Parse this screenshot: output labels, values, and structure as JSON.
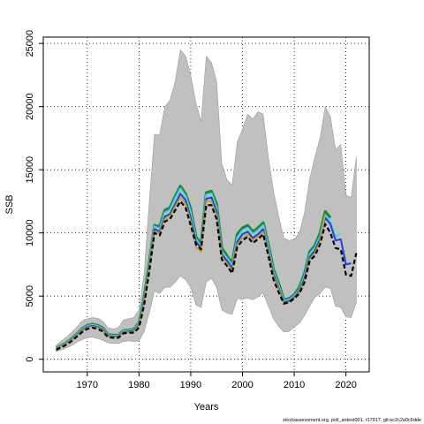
{
  "chart_data": {
    "type": "line",
    "title": "",
    "xlabel": "Years",
    "ylabel": "SSB",
    "xlim": [
      1961.5,
      2024.5
    ],
    "ylim": [
      -1000,
      25500
    ],
    "xticks": [
      1970,
      1980,
      1990,
      2000,
      2010,
      2020
    ],
    "yticks": [
      0,
      5000,
      10000,
      15000,
      20000,
      25000
    ],
    "grid": true,
    "grid_style": "dotted",
    "footer": "stockassessment.org, poll_antest001, r17917, git:ec2c2a0c6dde",
    "colors": {
      "band": "#c0c0c0",
      "band_edge": "#9a9a9a",
      "black": "#000000",
      "blue": "#1f3fdf",
      "cyan": "#5fd3e6",
      "green": "#1a8a3c",
      "gold": "#c8a028"
    },
    "band": {
      "x": [
        1964,
        1965,
        1966,
        1967,
        1968,
        1969,
        1970,
        1971,
        1972,
        1973,
        1974,
        1975,
        1976,
        1977,
        1978,
        1979,
        1980,
        1981,
        1982,
        1983,
        1984,
        1985,
        1986,
        1987,
        1988,
        1989,
        1990,
        1991,
        1992,
        1993,
        1994,
        1995,
        1996,
        1997,
        1998,
        1999,
        2000,
        2001,
        2002,
        2003,
        2004,
        2005,
        2006,
        2007,
        2008,
        2009,
        2010,
        2011,
        2012,
        2013,
        2014,
        2015,
        2016,
        2017,
        2018,
        2019,
        2020,
        2021,
        2022
      ],
      "lower": [
        600,
        750,
        900,
        1100,
        1350,
        1550,
        1700,
        1750,
        1650,
        1500,
        1300,
        1250,
        1250,
        1400,
        1450,
        1400,
        1450,
        2200,
        3700,
        5400,
        5200,
        5700,
        5700,
        6100,
        6600,
        6300,
        5700,
        4300,
        4100,
        6100,
        6400,
        5700,
        3900,
        3650,
        3550,
        4800,
        4750,
        4850,
        4700,
        4950,
        5250,
        4200,
        3200,
        2600,
        2150,
        2200,
        2550,
        2850,
        3450,
        4200,
        4900,
        5200,
        5700,
        5600,
        4200,
        4100,
        3350,
        3300,
        4500
      ],
      "upper": [
        1100,
        1450,
        1750,
        2150,
        2550,
        3050,
        3200,
        3300,
        3250,
        3000,
        2500,
        2400,
        2500,
        3100,
        3200,
        3300,
        3900,
        6800,
        12500,
        17800,
        17800,
        20000,
        20500,
        22000,
        24500,
        24000,
        22500,
        20300,
        18800,
        24000,
        23500,
        22000,
        15500,
        14200,
        13800,
        17200,
        18200,
        19400,
        19000,
        19600,
        19400,
        16000,
        13300,
        11300,
        9600,
        9400,
        9500,
        10000,
        11600,
        14300,
        16000,
        17500,
        20000,
        19200,
        16600,
        17000,
        13000,
        12800,
        16000
      ]
    },
    "series": [
      {
        "name": "",
        "color": "black",
        "dashed": true,
        "x": [
          1964,
          1965,
          1966,
          1967,
          1968,
          1969,
          1970,
          1971,
          1972,
          1973,
          1974,
          1975,
          1976,
          1977,
          1978,
          1979,
          1980,
          1981,
          1982,
          1983,
          1984,
          1985,
          1986,
          1987,
          1988,
          1989,
          1990,
          1991,
          1992,
          1993,
          1994,
          1995,
          1996,
          1997,
          1998,
          1999,
          2000,
          2001,
          2002,
          2003,
          2004,
          2005,
          2006,
          2007,
          2008,
          2009,
          2010,
          2011,
          2012,
          2013,
          2014,
          2015,
          2016,
          2017,
          2018,
          2019,
          2020,
          2021,
          2022
        ],
        "values": [
          750,
          950,
          1150,
          1450,
          1800,
          2150,
          2400,
          2500,
          2400,
          2200,
          1750,
          1700,
          1700,
          2050,
          2100,
          2100,
          2500,
          4300,
          7000,
          10000,
          9800,
          10900,
          11100,
          11800,
          12500,
          12000,
          10600,
          9100,
          8700,
          12200,
          12200,
          11100,
          7900,
          7400,
          6800,
          8900,
          9400,
          9700,
          9200,
          9500,
          9900,
          8200,
          6300,
          5300,
          4400,
          4500,
          4800,
          5200,
          6100,
          7800,
          8200,
          9100,
          10700,
          10000,
          8800,
          8700,
          6700,
          6600,
          8400
        ]
      },
      {
        "name": "",
        "color": "blue",
        "dashed": false,
        "x": [
          1964,
          1965,
          1966,
          1967,
          1968,
          1969,
          1970,
          1971,
          1972,
          1973,
          1974,
          1975,
          1976,
          1977,
          1978,
          1979,
          1980,
          1981,
          1982,
          1983,
          1984,
          1985,
          1986,
          1987,
          1988,
          1989,
          1990,
          1991,
          1992,
          1993,
          1994,
          1995,
          1996,
          1997,
          1998,
          1999,
          2000,
          2001,
          2002,
          2003,
          2004,
          2005,
          2006,
          2007,
          2008,
          2009,
          2010,
          2011,
          2012,
          2013,
          2014,
          2015,
          2016,
          2017,
          2018,
          2019,
          2020,
          2021
        ],
        "values": [
          820,
          1020,
          1250,
          1550,
          1900,
          2300,
          2550,
          2650,
          2550,
          2350,
          1850,
          1800,
          1800,
          2150,
          2200,
          2250,
          2700,
          4600,
          7300,
          10300,
          10100,
          11300,
          11500,
          12300,
          13100,
          12600,
          11200,
          9300,
          8800,
          12700,
          12800,
          11700,
          8300,
          7800,
          7200,
          9300,
          9900,
          10100,
          9600,
          9900,
          10300,
          8600,
          6700,
          5600,
          4500,
          4600,
          4900,
          5400,
          6400,
          8100,
          8600,
          9500,
          11200,
          10700,
          9400,
          9500,
          7500,
          7600
        ]
      },
      {
        "name": "",
        "color": "cyan",
        "dashed": false,
        "x": [
          1964,
          1965,
          1966,
          1967,
          1968,
          1969,
          1970,
          1971,
          1972,
          1973,
          1974,
          1975,
          1976,
          1977,
          1978,
          1979,
          1980,
          1981,
          1982,
          1983,
          1984,
          1985,
          1986,
          1987,
          1988,
          1989,
          1990,
          1991,
          1992,
          1993,
          1994,
          1995,
          1996,
          1997,
          1998,
          1999,
          2000,
          2001,
          2002,
          2003,
          2004,
          2005,
          2006,
          2007,
          2008,
          2009,
          2010,
          2011,
          2012,
          2013,
          2014,
          2015,
          2016,
          2017,
          2018,
          2019
        ],
        "values": [
          850,
          1060,
          1290,
          1600,
          1960,
          2370,
          2620,
          2720,
          2620,
          2420,
          1900,
          1850,
          1850,
          2220,
          2260,
          2320,
          2800,
          4750,
          7500,
          10500,
          10300,
          11600,
          11800,
          12700,
          13500,
          12900,
          11600,
          9500,
          8900,
          13000,
          13100,
          12000,
          8500,
          8000,
          7400,
          9600,
          10200,
          10400,
          9900,
          10200,
          10600,
          8900,
          6900,
          5800,
          4600,
          4700,
          5000,
          5500,
          6600,
          8300,
          8800,
          9700,
          11400,
          10900,
          9700,
          10000
        ]
      },
      {
        "name": "",
        "color": "green",
        "dashed": false,
        "x": [
          1964,
          1965,
          1966,
          1967,
          1968,
          1969,
          1970,
          1971,
          1972,
          1973,
          1974,
          1975,
          1976,
          1977,
          1978,
          1979,
          1980,
          1981,
          1982,
          1983,
          1984,
          1985,
          1986,
          1987,
          1988,
          1989,
          1990,
          1991,
          1992,
          1993,
          1994,
          1995,
          1996,
          1997,
          1998,
          1999,
          2000,
          2001,
          2002,
          2003,
          2004,
          2005,
          2006,
          2007,
          2008,
          2009,
          2010,
          2011,
          2012,
          2013,
          2014,
          2015,
          2016,
          2017
        ],
        "values": [
          880,
          1090,
          1320,
          1640,
          2000,
          2420,
          2680,
          2780,
          2680,
          2480,
          1950,
          1900,
          1900,
          2270,
          2310,
          2380,
          2880,
          4900,
          7700,
          10600,
          10500,
          11800,
          12000,
          12900,
          13700,
          13100,
          11900,
          9700,
          9100,
          13200,
          13300,
          12300,
          8800,
          8200,
          7600,
          9900,
          10400,
          10600,
          10100,
          10400,
          10800,
          9100,
          7100,
          6000,
          4700,
          4800,
          5100,
          5700,
          6800,
          8500,
          9000,
          10000,
          11700,
          11200
        ]
      },
      {
        "name": "",
        "color": "gold",
        "dashed": false,
        "x": [
          1964,
          1965,
          1966,
          1967,
          1968,
          1969,
          1970,
          1971,
          1972,
          1973,
          1974,
          1975,
          1976,
          1977,
          1978,
          1979,
          1980,
          1981,
          1982,
          1983,
          1984,
          1985,
          1986,
          1987,
          1988,
          1989,
          1990,
          1991,
          1992,
          1993,
          1994,
          1995,
          1996,
          1997,
          1998,
          1999,
          2000,
          2001,
          2002,
          2003,
          2004,
          2005,
          2006,
          2007,
          2008,
          2009,
          2010,
          2011,
          2012,
          2013,
          2014,
          2015,
          2016
        ],
        "values": [
          800,
          1000,
          1220,
          1510,
          1860,
          2240,
          2480,
          2580,
          2480,
          2280,
          1800,
          1750,
          1750,
          2100,
          2140,
          2180,
          2600,
          4450,
          7150,
          10100,
          9950,
          11100,
          11300,
          12100,
          12800,
          12300,
          10900,
          8900,
          8500,
          12500,
          12500,
          11400,
          8100,
          7600,
          7000,
          9100,
          9600,
          9900,
          9400,
          9700,
          10100,
          8400,
          6500,
          5500,
          4400,
          4500,
          4800,
          5300,
          6200,
          7900,
          8400,
          9300,
          11500
        ]
      }
    ]
  }
}
